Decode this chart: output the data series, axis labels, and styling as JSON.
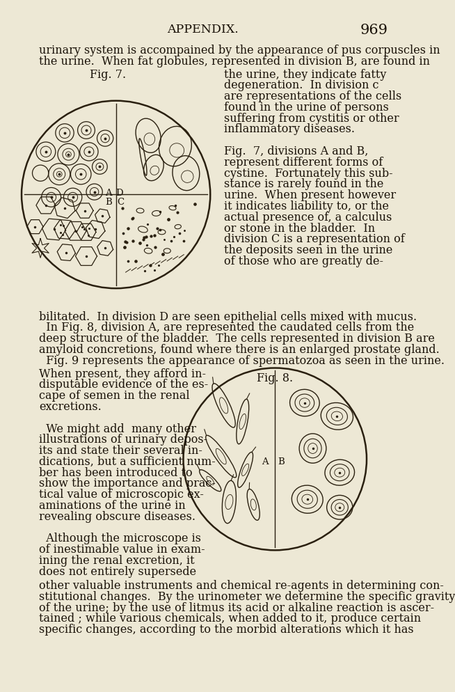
{
  "bg_color": "#ede8d5",
  "text_color": "#1a1208",
  "header_text": "APPENDIX.",
  "page_number": "969",
  "fig7_label": "Fig. 7.",
  "fig8_label": "Fig. 8.",
  "body_lines_top": [
    "urinary system is accompained by the appearance of pus corpuscles in",
    "the urine.  When fat globules, represented in division B, are found in"
  ],
  "right_col_lines": [
    "the urine, they indicate fatty",
    "degeneration.  In division c",
    "are representations of the cells",
    "found in the urine of persons",
    "suffering from cystitis or other",
    "inflammatory diseases.",
    "",
    "Fig.  7, divisions A and B,",
    "represent different forms of",
    "cystine.  Fortunately this sub-",
    "stance is rarely found in the",
    "urine.  When present however",
    "it indicates liability to, or the",
    "actual presence of, a calculus",
    "or stone in the bladder.  In",
    "division C is a representation of",
    "the deposits seen in the urine",
    "of those who are greatly de-"
  ],
  "full_lines_1": [
    "bilitated.  In division D are seen epithelial cells mixed with mucus.",
    "  In Fig. 8, division A, are represented the caudated cells from the",
    "deep structure of the bladder.  The cells represented in division B are",
    "amyloid concretions, found where there is an enlarged prostate gland.",
    "  Fig. 9 represents the appearance of spermatozoa as seen in the urine."
  ],
  "left_col_lines": [
    "When present, they afford in-",
    "disputable evidence of the es-",
    "cape of semen in the renal",
    "excretions.",
    "",
    "  We might add  many other",
    "illustrations of urinary depos-",
    "its and state their several in-",
    "dications, but a sufficient num-",
    "ber has been introduced to",
    "show the importance and prac-",
    "tical value of microscopic ex-",
    "aminations of the urine in",
    "revealing obscure diseases.",
    "",
    "  Although the microscope is",
    "of inestimable value in exam-",
    "ining the renal excretion, it",
    "does not entirely supersede"
  ],
  "full_lines_2": [
    "other valuable instruments and chemical re-agents in determining con-",
    "stitutional changes.  By the urinometer we determine the specific gravity",
    "of the urine; by the use of litmus its acid or alkaline reaction is ascer-",
    "tained ; while various chemicals, when added to it, produce certain",
    "specific changes, according to the morbid alterations which it has"
  ]
}
